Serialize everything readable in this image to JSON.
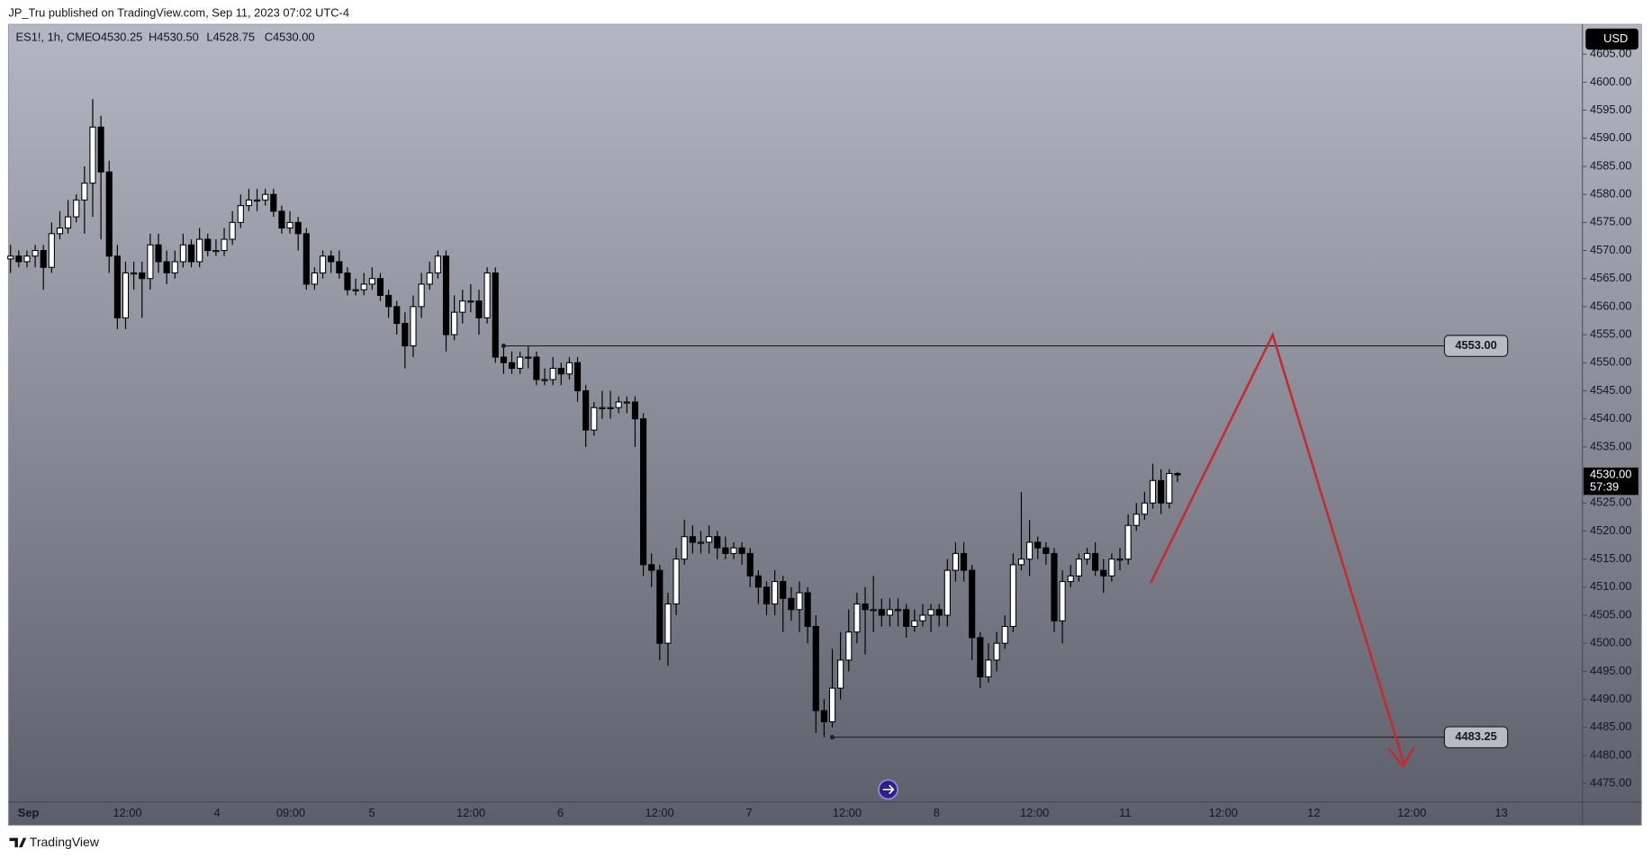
{
  "header": {
    "publisher": "JP_Tru published on TradingView.com, Sep 11, 2023 07:02 UTC-4",
    "symbol": "ES1!, 1h, CME",
    "ohlc": [
      "O4530.25",
      "H4530.50",
      "L4528.75",
      "C4530.00"
    ],
    "currency": "USD"
  },
  "chart_data": {
    "type": "candlestick",
    "up_color": "#ffffff",
    "down_color": "#000000",
    "edge_color": "#000000",
    "candles": [
      [
        4568.5,
        4571,
        4566,
        4569
      ],
      [
        4569,
        4570,
        4567,
        4568
      ],
      [
        4568,
        4570,
        4567,
        4569
      ],
      [
        4569,
        4571,
        4567,
        4570
      ],
      [
        4570,
        4571,
        4563,
        4567
      ],
      [
        4567,
        4575,
        4566,
        4573
      ],
      [
        4573,
        4577,
        4572,
        4574
      ],
      [
        4574,
        4579,
        4573,
        4576
      ],
      [
        4576,
        4580,
        4575,
        4579
      ],
      [
        4579,
        4585,
        4573,
        4582
      ],
      [
        4582,
        4597,
        4576,
        4592
      ],
      [
        4592,
        4594,
        4572,
        4584
      ],
      [
        4584,
        4586,
        4566,
        4569
      ],
      [
        4569,
        4571,
        4556,
        4558
      ],
      [
        4558,
        4568,
        4556,
        4566
      ],
      [
        4566,
        4568,
        4563,
        4566
      ],
      [
        4566,
        4568,
        4558,
        4565
      ],
      [
        4565,
        4573,
        4563,
        4571
      ],
      [
        4571,
        4573,
        4566,
        4568
      ],
      [
        4568,
        4570,
        4564,
        4566
      ],
      [
        4566,
        4570,
        4565,
        4568
      ],
      [
        4568,
        4573,
        4567,
        4571
      ],
      [
        4571,
        4572,
        4567,
        4568
      ],
      [
        4568,
        4574,
        4567,
        4572
      ],
      [
        4572,
        4573,
        4569,
        4570
      ],
      [
        4570,
        4572,
        4569,
        4570
      ],
      [
        4570,
        4574,
        4569,
        4572
      ],
      [
        4572,
        4577,
        4571,
        4575
      ],
      [
        4575,
        4580,
        4574,
        4578
      ],
      [
        4578,
        4581,
        4577,
        4579
      ],
      [
        4579,
        4581,
        4577,
        4579
      ],
      [
        4579,
        4581,
        4578,
        4580
      ],
      [
        4580,
        4581,
        4576,
        4577
      ],
      [
        4577,
        4578,
        4573,
        4574
      ],
      [
        4574,
        4577,
        4573,
        4575
      ],
      [
        4575,
        4576,
        4570,
        4573
      ],
      [
        4573,
        4574,
        4563,
        4564
      ],
      [
        4564,
        4567,
        4563,
        4566
      ],
      [
        4566,
        4570,
        4565,
        4569
      ],
      [
        4569,
        4570,
        4566,
        4568
      ],
      [
        4568,
        4570,
        4565,
        4566
      ],
      [
        4566,
        4567,
        4562,
        4563
      ],
      [
        4563,
        4565,
        4562,
        4563
      ],
      [
        4563,
        4566,
        4562,
        4564
      ],
      [
        4564,
        4567,
        4563,
        4565
      ],
      [
        4565,
        4566,
        4561,
        4562
      ],
      [
        4562,
        4563,
        4558,
        4560
      ],
      [
        4560,
        4561,
        4555,
        4557
      ],
      [
        4557,
        4559,
        4549,
        4553
      ],
      [
        4553,
        4562,
        4551,
        4560
      ],
      [
        4560,
        4566,
        4558,
        4564
      ],
      [
        4564,
        4568,
        4563,
        4566
      ],
      [
        4566,
        4570,
        4565,
        4569
      ],
      [
        4569,
        4570,
        4552,
        4555
      ],
      [
        4555,
        4562,
        4554,
        4559
      ],
      [
        4559,
        4563,
        4557,
        4561
      ],
      [
        4561,
        4564,
        4559,
        4561
      ],
      [
        4561,
        4563,
        4555,
        4558
      ],
      [
        4558,
        4567,
        4557,
        4566
      ],
      [
        4566,
        4567,
        4550,
        4551
      ],
      [
        4551,
        4553,
        4548,
        4550
      ],
      [
        4550,
        4552,
        4548,
        4549
      ],
      [
        4549,
        4552,
        4548,
        4551
      ],
      [
        4551,
        4553,
        4549,
        4551
      ],
      [
        4551,
        4552,
        4546,
        4547
      ],
      [
        4547,
        4549,
        4546,
        4547
      ],
      [
        4547,
        4551,
        4546,
        4549
      ],
      [
        4549,
        4550,
        4546,
        4548
      ],
      [
        4548,
        4551,
        4547,
        4550
      ],
      [
        4550,
        4551,
        4543,
        4545
      ],
      [
        4545,
        4546,
        4535,
        4538
      ],
      [
        4538,
        4543,
        4537,
        4542
      ],
      [
        4542,
        4545,
        4540,
        4542
      ],
      [
        4542,
        4545,
        4540,
        4542
      ],
      [
        4542,
        4544,
        4541,
        4543
      ],
      [
        4543,
        4544,
        4541,
        4543
      ],
      [
        4543,
        4544,
        4535,
        4540
      ],
      [
        4540,
        4541,
        4512,
        4514
      ],
      [
        4514,
        4516,
        4510,
        4513
      ],
      [
        4513,
        4514,
        4497,
        4500
      ],
      [
        4500,
        4509,
        4496,
        4507
      ],
      [
        4507,
        4517,
        4505,
        4515
      ],
      [
        4515,
        4522,
        4514,
        4519
      ],
      [
        4519,
        4521,
        4516,
        4518
      ],
      [
        4518,
        4520,
        4516,
        4518
      ],
      [
        4518,
        4521,
        4516,
        4519
      ],
      [
        4519,
        4520,
        4515,
        4517
      ],
      [
        4517,
        4519,
        4515,
        4516
      ],
      [
        4516,
        4518,
        4515,
        4517
      ],
      [
        4517,
        4518,
        4514,
        4516
      ],
      [
        4516,
        4517,
        4510,
        4512
      ],
      [
        4512,
        4513,
        4507,
        4510
      ],
      [
        4510,
        4511,
        4505,
        4507
      ],
      [
        4507,
        4513,
        4505,
        4511
      ],
      [
        4511,
        4512,
        4502,
        4508
      ],
      [
        4508,
        4510,
        4504,
        4506
      ],
      [
        4506,
        4511,
        4502,
        4509
      ],
      [
        4509,
        4510,
        4500,
        4503
      ],
      [
        4503,
        4505,
        4484,
        4488
      ],
      [
        4488,
        4490,
        4483.25,
        4486
      ],
      [
        4486,
        4499,
        4485,
        4492
      ],
      [
        4492,
        4502,
        4490,
        4497
      ],
      [
        4497,
        4506,
        4495,
        4502
      ],
      [
        4502,
        4509,
        4500,
        4507
      ],
      [
        4507,
        4510,
        4498,
        4506
      ],
      [
        4506,
        4512,
        4502,
        4506
      ],
      [
        4506,
        4508,
        4503,
        4505
      ],
      [
        4505,
        4508,
        4503,
        4506
      ],
      [
        4506,
        4508,
        4503,
        4506
      ],
      [
        4506,
        4507,
        4501,
        4503
      ],
      [
        4503,
        4506,
        4502,
        4504
      ],
      [
        4504,
        4507,
        4503,
        4505
      ],
      [
        4505,
        4507,
        4502,
        4506
      ],
      [
        4506,
        4507,
        4503,
        4505
      ],
      [
        4505,
        4515,
        4503,
        4513
      ],
      [
        4513,
        4518,
        4511,
        4516
      ],
      [
        4516,
        4518,
        4511,
        4513
      ],
      [
        4513,
        4514,
        4497,
        4501
      ],
      [
        4501,
        4502,
        4492,
        4494
      ],
      [
        4494,
        4500,
        4493,
        4497
      ],
      [
        4497,
        4502,
        4495,
        4500
      ],
      [
        4500,
        4505,
        4499,
        4503
      ],
      [
        4503,
        4516,
        4502,
        4514
      ],
      [
        4514,
        4527,
        4513,
        4515
      ],
      [
        4515,
        4522,
        4512,
        4518
      ],
      [
        4518,
        4519,
        4515,
        4517
      ],
      [
        4517,
        4518,
        4514,
        4516
      ],
      [
        4516,
        4517,
        4502,
        4504
      ],
      [
        4504,
        4513,
        4500,
        4511
      ],
      [
        4511,
        4514,
        4510,
        4512
      ],
      [
        4512,
        4516,
        4511,
        4515
      ],
      [
        4515,
        4517,
        4514,
        4516
      ],
      [
        4516,
        4518,
        4512,
        4513
      ],
      [
        4513,
        4515,
        4509,
        4512
      ],
      [
        4512,
        4516,
        4511,
        4515
      ],
      [
        4515,
        4517,
        4513,
        4515
      ],
      [
        4515,
        4523,
        4514,
        4521
      ],
      [
        4521,
        4525,
        4520,
        4523
      ],
      [
        4523,
        4527,
        4522,
        4525
      ],
      [
        4525,
        4532,
        4524,
        4529
      ],
      [
        4529,
        4531,
        4523,
        4525
      ],
      [
        4525,
        4531,
        4524,
        4530.25
      ],
      [
        4530.25,
        4530.5,
        4528.75,
        4530
      ]
    ],
    "ylim": [
      4473,
      4609
    ],
    "yticks": [
      {
        "value": 4475,
        "label": "4475.00"
      },
      {
        "value": 4480,
        "label": "4480.00"
      },
      {
        "value": 4485,
        "label": "4485.00"
      },
      {
        "value": 4490,
        "label": "4490.00"
      },
      {
        "value": 4495,
        "label": "4495.00"
      },
      {
        "value": 4500,
        "label": "4500.00"
      },
      {
        "value": 4505,
        "label": "4505.00"
      },
      {
        "value": 4510,
        "label": "4510.00"
      },
      {
        "value": 4515,
        "label": "4515.00"
      },
      {
        "value": 4520,
        "label": "4520.00"
      },
      {
        "value": 4525,
        "label": "4525.00"
      },
      {
        "value": 4535,
        "label": "4535.00"
      },
      {
        "value": 4540,
        "label": "4540.00"
      },
      {
        "value": 4545,
        "label": "4545.00"
      },
      {
        "value": 4550,
        "label": "4550.00"
      },
      {
        "value": 4555,
        "label": "4555.00"
      },
      {
        "value": 4560,
        "label": "4560.00"
      },
      {
        "value": 4565,
        "label": "4565.00"
      },
      {
        "value": 4570,
        "label": "4570.00"
      },
      {
        "value": 4575,
        "label": "4575.00"
      },
      {
        "value": 4580,
        "label": "4580.00"
      },
      {
        "value": 4585,
        "label": "4585.00"
      },
      {
        "value": 4590,
        "label": "4590.00"
      },
      {
        "value": 4595,
        "label": "4595.00"
      },
      {
        "value": 4600,
        "label": "4600.00"
      },
      {
        "value": 4605,
        "label": "4605.00"
      }
    ],
    "xtick_labels": [
      "Sep",
      "12:00",
      "4",
      "09:00",
      "5",
      "12:00",
      "6",
      "12:00",
      "7",
      "12:00",
      "8",
      "12:00",
      "11",
      "12:00",
      "12",
      "12:00",
      "13"
    ],
    "levels": [
      {
        "value": 4553,
        "label": "4553.00"
      },
      {
        "value": 4483.25,
        "label": "4483.25"
      }
    ],
    "last_price": {
      "value": 4530,
      "label": "4530.00"
    },
    "countdown": "57:39"
  },
  "footer": {
    "brand": "TradingView"
  }
}
